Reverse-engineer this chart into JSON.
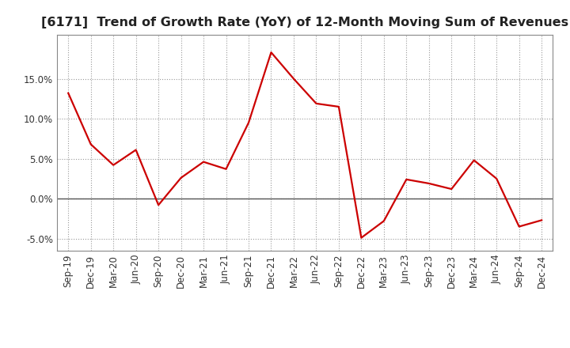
{
  "title": "[6171]  Trend of Growth Rate (YoY) of 12-Month Moving Sum of Revenues",
  "x_labels": [
    "Sep-19",
    "Dec-19",
    "Mar-20",
    "Jun-20",
    "Sep-20",
    "Dec-20",
    "Mar-21",
    "Jun-21",
    "Sep-21",
    "Dec-21",
    "Mar-22",
    "Jun-22",
    "Sep-22",
    "Dec-22",
    "Mar-23",
    "Jun-23",
    "Sep-23",
    "Dec-23",
    "Mar-24",
    "Jun-24",
    "Sep-24",
    "Dec-24"
  ],
  "y_values": [
    13.2,
    6.8,
    4.2,
    6.1,
    -0.8,
    2.6,
    4.6,
    3.7,
    9.5,
    18.3,
    15.0,
    11.9,
    11.5,
    -4.9,
    -2.8,
    2.4,
    1.9,
    1.2,
    4.8,
    2.5,
    -3.5,
    -2.7
  ],
  "line_color": "#CC0000",
  "line_width": 1.6,
  "ylim": [
    -6.5,
    20.5
  ],
  "yticks": [
    -5.0,
    0.0,
    5.0,
    10.0,
    15.0
  ],
  "grid_color": "#999999",
  "bg_color": "#ffffff",
  "plot_bg_color": "#ffffff",
  "title_fontsize": 11.5,
  "tick_fontsize": 8.5
}
